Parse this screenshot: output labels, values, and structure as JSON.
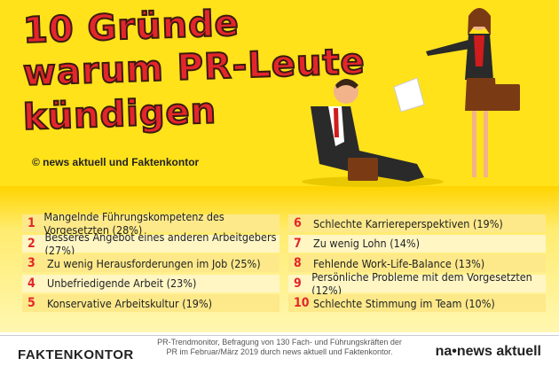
{
  "header": {
    "title_lines": [
      "10 Gründe",
      "warum PR-Leute",
      "kündigen"
    ],
    "credit": "© news aktuell und Faktenkontor"
  },
  "list": {
    "items": [
      {
        "number": "1",
        "text": "Mangelnde Führungskompetenz des Vorgesetzten (28%)"
      },
      {
        "number": "2",
        "text": "Besseres Angebot eines anderen Arbeitgebers (27%)"
      },
      {
        "number": "3",
        "text": "Zu wenig Herausforderungen im Job (25%)"
      },
      {
        "number": "4",
        "text": "Unbefriedigende Arbeit (23%)"
      },
      {
        "number": "5",
        "text": "Konservative Arbeitskultur (19%)"
      },
      {
        "number": "6",
        "text": "Schlechte Karriereperspektiven (19%)"
      },
      {
        "number": "7",
        "text": "Zu wenig Lohn (14%)"
      },
      {
        "number": "8",
        "text": "Fehlende Work-Life-Balance (13%)"
      },
      {
        "number": "9",
        "text": "Persönliche Probleme mit dem Vorgesetzten (12%)"
      },
      {
        "number": "10",
        "text": "Schlechte Stimmung im Team (10%)"
      }
    ]
  },
  "footer": {
    "left_logo": "FAKTENKONTOR",
    "source": "PR-Trendmonitor, Befragung von 130 Fach- und Führungskräften der PR im Februar/März 2019 durch news aktuell und Faktenkontor.",
    "right_logo": "na•news aktuell"
  }
}
